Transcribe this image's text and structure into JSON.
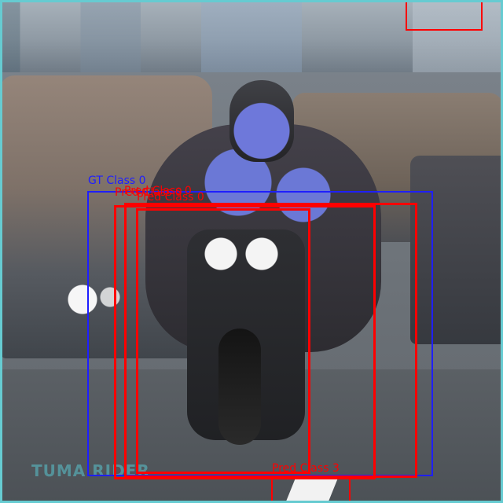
{
  "scene": {
    "watermark_text": "TUMA\nRIDER"
  },
  "annotations": {
    "gt_label": "GT Class 0",
    "pred_label_1": "Pred Class 0",
    "pred_label_2": "Pred Class 0",
    "pred_label_3": "Pred Class 0",
    "pred_label_bottom": "Pred Class 3"
  },
  "colors": {
    "gt_box": "#1f1fff",
    "pred_box": "#ff0000",
    "frame": "#66cbd1"
  }
}
